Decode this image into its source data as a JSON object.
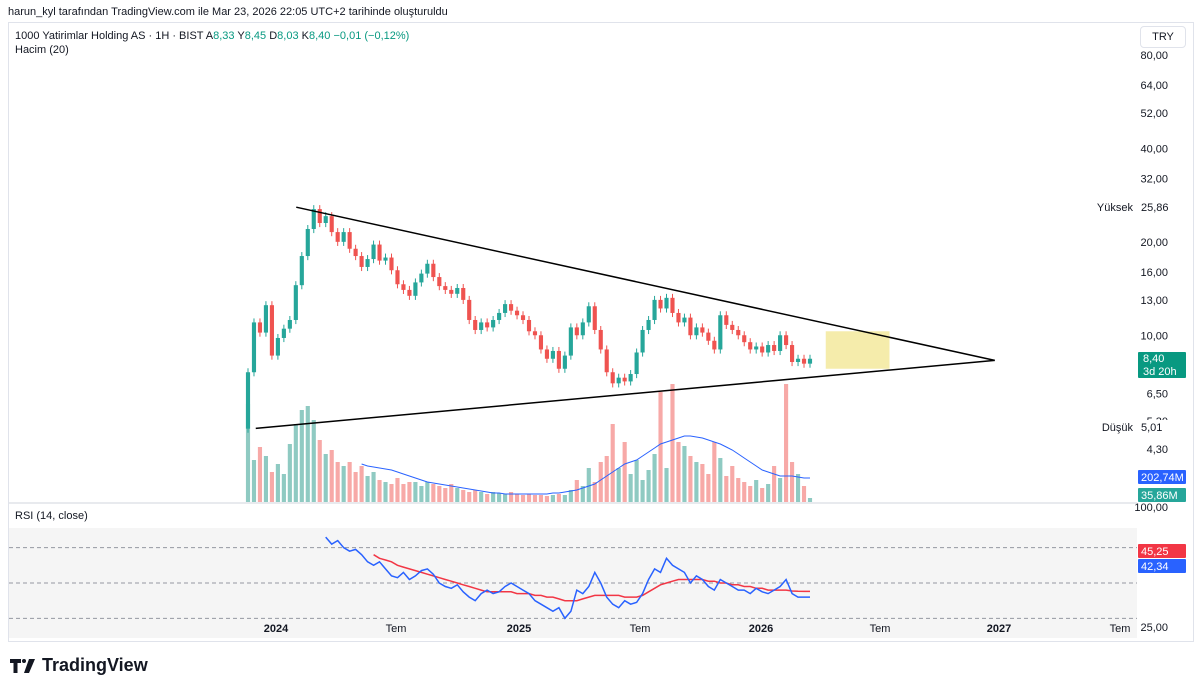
{
  "header": {
    "note": "harun_kyl tarafından TradingView.com ile Mar 23, 2026 22:05 UTC+2 tarihinde oluşturuldu"
  },
  "legend": {
    "symbol": "1000 Yatirimlar Holding AS · 1H · BIST",
    "o_label": "A",
    "o_value": "8,33",
    "h_label": "Y",
    "h_value": "8,45",
    "l_label": "D",
    "l_value": "8,03",
    "c_label": "K",
    "c_value": "8,40",
    "change": "−0,01 (−0,12%)",
    "volume_label": "Hacim (20)"
  },
  "currency_button": "TRY",
  "rsi_legend": "RSI (14, close)",
  "footer": {
    "brand": "TradingView"
  },
  "colors": {
    "up": "#26a69a",
    "down": "#ef5350",
    "vol_up": "#8fcac2",
    "vol_down": "#f7a9a7",
    "vol_ma": "#2962ff",
    "rsi": "#2962ff",
    "rsi_ma": "#f23645",
    "zone": "#f2e58f"
  },
  "chart_data": {
    "type": "candlestick",
    "price_scale": "log",
    "price_ticks": [
      "80,00",
      "64,00",
      "52,00",
      "40,00",
      "32,00",
      "20,00",
      "16,00",
      "13,00",
      "10,00",
      "6,50",
      "5,30",
      "4,30",
      "100,00"
    ],
    "x_tick_labels": [
      "2024",
      "Tem",
      "2025",
      "Tem",
      "2026",
      "Tem",
      "2027",
      "Tem"
    ],
    "labels": {
      "high": {
        "label": "Yüksek",
        "value": "25,86"
      },
      "low": {
        "label": "Düşük",
        "value": "5,01"
      },
      "last": {
        "value": "8,40",
        "countdown": "3d 20h"
      },
      "vol_ma_value": "202,74M",
      "vol_value": "35,86M",
      "rsi_ma_value": "45,25",
      "rsi_value": "42,34"
    },
    "trendlines": [
      {
        "name": "upper",
        "from": [
          "2024-02",
          25.86
        ],
        "to": [
          "2026-12",
          8.3
        ]
      },
      {
        "name": "lower",
        "from": [
          "2023-12",
          5.01
        ],
        "to": [
          "2026-12",
          8.3
        ]
      }
    ],
    "zone": {
      "from": "2026-04",
      "to": "2026-07",
      "top": 10.3,
      "bottom": 7.8
    },
    "candles": [
      [
        5.0,
        7.6
      ],
      [
        7.6,
        11.0
      ],
      [
        11.0,
        10.2
      ],
      [
        10.2,
        12.5
      ],
      [
        12.5,
        8.6
      ],
      [
        8.6,
        9.8
      ],
      [
        9.8,
        10.5
      ],
      [
        10.5,
        11.2
      ],
      [
        11.2,
        14.5
      ],
      [
        14.5,
        18.0
      ],
      [
        18.0,
        22.0
      ],
      [
        22.0,
        25.5
      ],
      [
        25.5,
        23.0
      ],
      [
        23.0,
        24.2
      ],
      [
        24.2,
        21.5
      ],
      [
        21.5,
        20.0
      ],
      [
        20.0,
        21.5
      ],
      [
        21.5,
        19.0
      ],
      [
        19.0,
        18.0
      ],
      [
        18.0,
        16.6
      ],
      [
        16.6,
        17.6
      ],
      [
        17.6,
        19.6
      ],
      [
        19.6,
        17.4
      ],
      [
        17.4,
        17.8
      ],
      [
        17.8,
        16.2
      ],
      [
        16.2,
        14.6
      ],
      [
        14.6,
        14.0
      ],
      [
        14.0,
        13.4
      ],
      [
        13.4,
        14.8
      ],
      [
        14.8,
        15.8
      ],
      [
        15.8,
        17.0
      ],
      [
        17.0,
        15.4
      ],
      [
        15.4,
        14.4
      ],
      [
        14.4,
        14.0
      ],
      [
        14.0,
        13.6
      ],
      [
        13.6,
        14.2
      ],
      [
        14.2,
        13.0
      ],
      [
        13.0,
        11.2
      ],
      [
        11.2,
        10.4
      ],
      [
        10.4,
        11.0
      ],
      [
        11.0,
        10.6
      ],
      [
        10.6,
        11.2
      ],
      [
        11.2,
        11.8
      ],
      [
        11.8,
        12.6
      ],
      [
        12.6,
        12.0
      ],
      [
        12.0,
        11.6
      ],
      [
        11.6,
        11.2
      ],
      [
        11.2,
        10.3
      ],
      [
        10.3,
        10.0
      ],
      [
        10.0,
        9.0
      ],
      [
        9.0,
        8.4
      ],
      [
        8.4,
        8.9
      ],
      [
        8.9,
        7.8
      ],
      [
        7.8,
        8.6
      ],
      [
        8.6,
        10.6
      ],
      [
        10.6,
        10.0
      ],
      [
        10.0,
        11.0
      ],
      [
        11.0,
        12.4
      ],
      [
        12.4,
        10.4
      ],
      [
        10.4,
        9.0
      ],
      [
        9.0,
        7.6
      ],
      [
        7.6,
        7.0
      ],
      [
        7.0,
        7.3
      ],
      [
        7.3,
        7.1
      ],
      [
        7.1,
        7.5
      ],
      [
        7.5,
        8.8
      ],
      [
        8.8,
        10.4
      ],
      [
        10.4,
        11.2
      ],
      [
        11.2,
        13.0
      ],
      [
        13.0,
        12.2
      ],
      [
        12.2,
        13.2
      ],
      [
        13.2,
        11.8
      ],
      [
        11.8,
        11.0
      ],
      [
        11.0,
        11.4
      ],
      [
        11.4,
        10.0
      ],
      [
        10.0,
        10.6
      ],
      [
        10.6,
        10.2
      ],
      [
        10.2,
        9.6
      ],
      [
        9.6,
        9.0
      ],
      [
        9.0,
        11.6
      ],
      [
        11.6,
        10.8
      ],
      [
        10.8,
        10.4
      ],
      [
        10.4,
        10.0
      ],
      [
        10.0,
        9.5
      ],
      [
        9.5,
        9.0
      ],
      [
        9.0,
        9.2
      ],
      [
        9.2,
        8.8
      ],
      [
        8.8,
        9.3
      ],
      [
        9.3,
        8.9
      ],
      [
        8.9,
        10.0
      ],
      [
        10.0,
        9.3
      ],
      [
        9.3,
        8.2
      ],
      [
        8.2,
        8.4
      ],
      [
        8.4,
        8.1
      ],
      [
        8.1,
        8.4
      ]
    ],
    "volume": [
      98,
      42,
      55,
      46,
      30,
      38,
      28,
      58,
      78,
      92,
      96,
      82,
      62,
      48,
      52,
      40,
      36,
      40,
      30,
      36,
      26,
      30,
      22,
      20,
      18,
      24,
      18,
      20,
      20,
      16,
      20,
      18,
      16,
      14,
      18,
      14,
      12,
      10,
      12,
      10,
      8,
      10,
      9,
      8,
      10,
      8,
      7,
      8,
      7,
      7,
      6,
      7,
      8,
      7,
      12,
      22,
      16,
      34,
      20,
      40,
      46,
      78,
      34,
      60,
      28,
      42,
      22,
      32,
      48,
      110,
      34,
      118,
      60,
      56,
      46,
      40,
      38,
      28,
      60,
      44,
      26,
      36,
      24,
      20,
      16,
      22,
      14,
      18,
      36,
      24,
      118,
      40,
      28,
      16,
      4
    ],
    "vol_ma": [
      null,
      null,
      null,
      null,
      null,
      null,
      null,
      null,
      null,
      null,
      null,
      null,
      null,
      null,
      null,
      null,
      null,
      null,
      null,
      38,
      36,
      35,
      34,
      33,
      32,
      30,
      28,
      26,
      24,
      22,
      20,
      19,
      18,
      17,
      16,
      15,
      14,
      13,
      12,
      11,
      10,
      9,
      9,
      8,
      8,
      8,
      8,
      8,
      8,
      8,
      8,
      9,
      9,
      10,
      11,
      12,
      14,
      16,
      18,
      22,
      26,
      30,
      34,
      38,
      40,
      42,
      46,
      50,
      54,
      58,
      60,
      62,
      64,
      66,
      66,
      65,
      64,
      62,
      60,
      58,
      55,
      52,
      48,
      44,
      40,
      36,
      32,
      30,
      28,
      26,
      26,
      26,
      25,
      24,
      24
    ],
    "rsi": [
      null,
      null,
      null,
      null,
      null,
      null,
      null,
      null,
      null,
      null,
      null,
      null,
      null,
      76,
      72,
      74,
      70,
      68,
      69,
      66,
      62,
      60,
      62,
      58,
      54,
      53,
      56,
      52,
      54,
      57,
      58,
      55,
      50,
      48,
      47,
      49,
      45,
      42,
      40,
      44,
      46,
      44,
      45,
      48,
      50,
      48,
      46,
      44,
      40,
      38,
      36,
      34,
      36,
      30,
      34,
      46,
      44,
      48,
      56,
      50,
      42,
      38,
      36,
      40,
      38,
      39,
      44,
      52,
      58,
      56,
      64,
      60,
      58,
      56,
      50,
      54,
      52,
      48,
      46,
      52,
      50,
      48,
      46,
      46,
      44,
      47,
      45,
      44,
      46,
      48,
      52,
      44,
      42,
      42,
      42
    ],
    "rsi_ma": [
      null,
      null,
      null,
      null,
      null,
      null,
      null,
      null,
      null,
      null,
      null,
      null,
      null,
      null,
      null,
      null,
      null,
      null,
      null,
      null,
      null,
      66,
      64,
      63,
      62,
      60,
      59,
      58,
      57,
      56,
      55,
      54,
      53,
      52,
      51,
      50,
      49,
      48,
      47,
      46,
      45,
      45,
      45,
      45,
      45,
      44,
      44,
      44,
      43,
      43,
      42,
      42,
      41,
      40,
      40,
      40,
      41,
      42,
      43,
      43,
      43,
      43,
      43,
      42,
      42,
      42,
      43,
      45,
      47,
      49,
      50,
      51,
      52,
      52,
      52,
      52,
      52,
      51,
      51,
      50,
      50,
      49,
      49,
      48,
      48,
      47,
      47,
      46,
      46,
      46,
      46,
      45.5,
      45.3,
      45.25,
      45.25
    ]
  }
}
